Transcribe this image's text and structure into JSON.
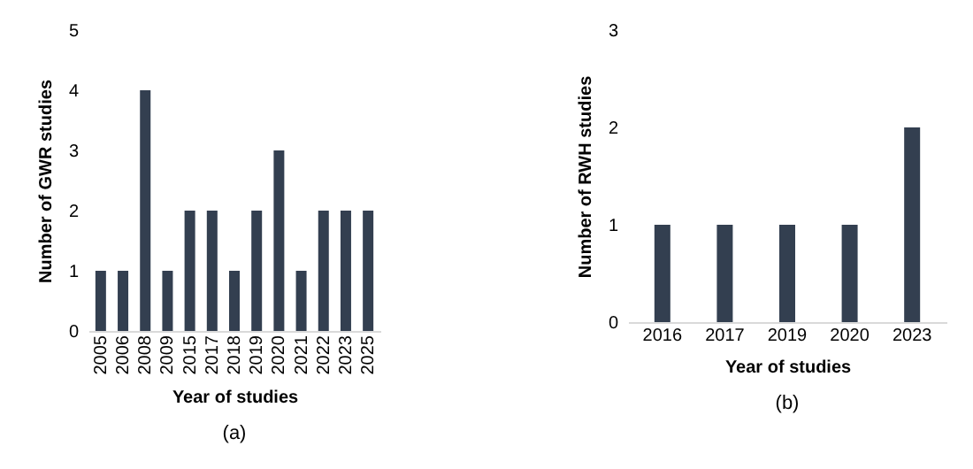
{
  "chart_data": [
    {
      "type": "bar",
      "categories": [
        "2005",
        "2006",
        "2008",
        "2009",
        "2015",
        "2017",
        "2018",
        "2019",
        "2020",
        "2021",
        "2022",
        "2023",
        "2025"
      ],
      "values": [
        1,
        1,
        4,
        1,
        2,
        2,
        1,
        2,
        3,
        1,
        2,
        2,
        2
      ],
      "color": "#333f50",
      "xlabel": "Year of studies",
      "ylabel": "Number of GWR studies",
      "ylim": [
        0,
        5
      ],
      "yticks": [
        0,
        1,
        2,
        3,
        4,
        5
      ],
      "annotations": [
        "(a)"
      ]
    },
    {
      "type": "bar",
      "categories": [
        "2016",
        "2017",
        "2019",
        "2020",
        "2023"
      ],
      "values": [
        1,
        1,
        1,
        1,
        2
      ],
      "color": "#333f50",
      "xlabel": "Year of studies",
      "ylabel": "Number of RWH studies",
      "ylim": [
        0,
        3
      ],
      "yticks": [
        0,
        1,
        2,
        3
      ],
      "annotations": [
        "(b)"
      ]
    }
  ]
}
